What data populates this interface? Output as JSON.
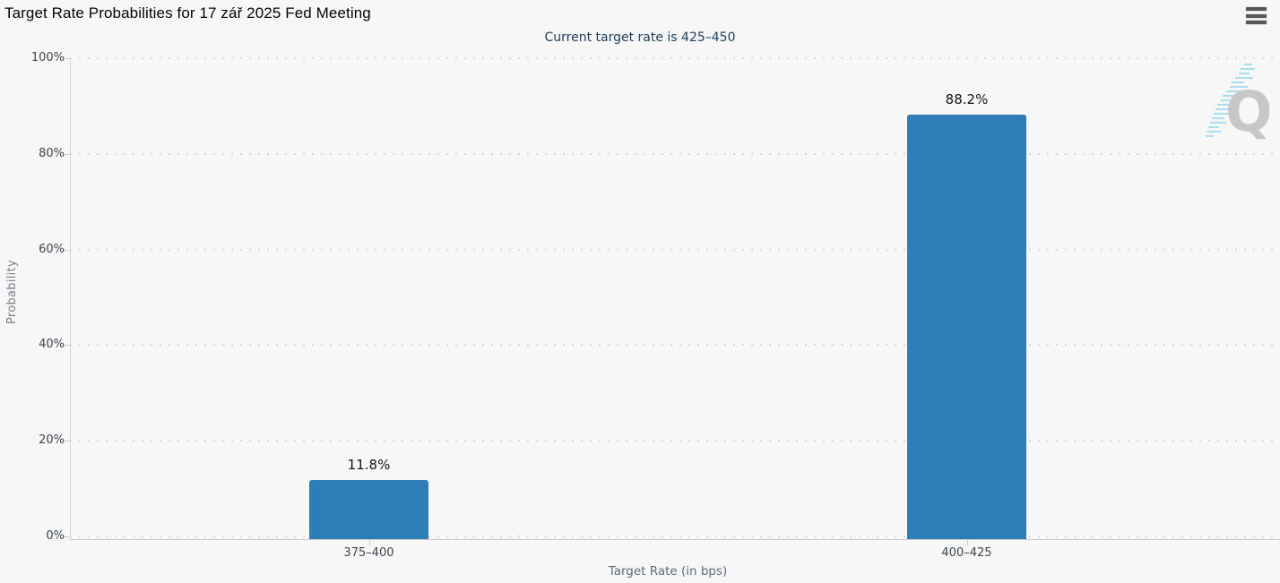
{
  "header": {
    "title": "Target Rate Probabilities for 17 zář 2025 Fed Meeting",
    "subtitle": "Current target rate is 425–450",
    "menu_icon": "hamburger-menu"
  },
  "chart_data": {
    "type": "bar",
    "title": "Target Rate Probabilities for 17 zář 2025 Fed Meeting",
    "subtitle": "Current target rate is 425–450",
    "categories": [
      "375–400",
      "400–425"
    ],
    "values": [
      11.8,
      88.2
    ],
    "value_labels": [
      "11.8%",
      "88.2%"
    ],
    "xlabel": "Target Rate (in bps)",
    "ylabel": "Probability",
    "ylim": [
      0,
      100
    ],
    "ytick_values": [
      0,
      20,
      40,
      60,
      80,
      100
    ],
    "ytick_labels": [
      "0%",
      "20%",
      "40%",
      "60%",
      "80%",
      "100%"
    ],
    "grid": "dotted horizontal gridlines",
    "legend": "none",
    "bar_color": "#2c7db8"
  },
  "watermark": {
    "letter": "Q",
    "name": "quikstrike-logo"
  },
  "colors": {
    "background": "#f7f7f7",
    "title_text": "#050505",
    "subtitle_text": "#1e3d5e",
    "axis_text": "#3e4651",
    "axis_title_text": "#5d6b7c",
    "gridline": "#d8d8d8",
    "bar": "#2c7db8",
    "menu_icon": "#575757",
    "watermark_letter": "#c7c7c7",
    "watermark_dashes": "#a9def1"
  }
}
